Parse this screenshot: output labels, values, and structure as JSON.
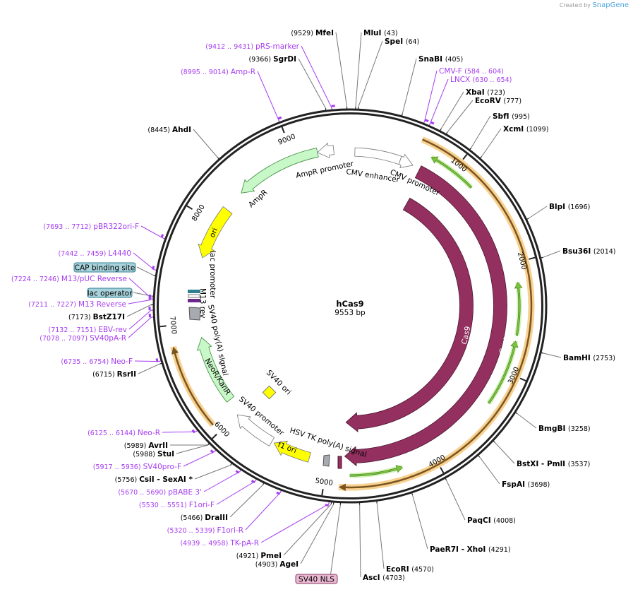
{
  "credit": {
    "prefix": "Created by",
    "brand": "SnapGene"
  },
  "plasmid": {
    "name": "hCas9",
    "length_label": "9553 bp",
    "length": 9553
  },
  "ticks": [
    1000,
    2000,
    3000,
    4000,
    5000,
    6000,
    7000,
    8000,
    9000
  ],
  "enzymes": [
    {
      "name": "MfeI",
      "pos": 9529
    },
    {
      "name": "MluI",
      "pos": 43
    },
    {
      "name": "SpeI",
      "pos": 64
    },
    {
      "name": "SgrDI",
      "pos": 9366
    },
    {
      "name": "SnaBI",
      "pos": 405
    },
    {
      "name": "XbaI",
      "pos": 723
    },
    {
      "name": "EcoRV",
      "pos": 777
    },
    {
      "name": "SbfI",
      "pos": 995
    },
    {
      "name": "XcmI",
      "pos": 1099
    },
    {
      "name": "AhdI",
      "pos": 8445
    },
    {
      "name": "BlpI",
      "pos": 1696
    },
    {
      "name": "Bsu36I",
      "pos": 2014
    },
    {
      "name": "BamHI",
      "pos": 2753
    },
    {
      "name": "BmgBI",
      "pos": 3258
    },
    {
      "name": "BstXI  - PmlI",
      "pos": 3537
    },
    {
      "name": "FspAI",
      "pos": 3698
    },
    {
      "name": "PaqCI",
      "pos": 4008
    },
    {
      "name": "PaeR7I  - XhoI",
      "pos": 4291
    },
    {
      "name": "EcoRI",
      "pos": 4570
    },
    {
      "name": "AscI",
      "pos": 4703
    },
    {
      "name": "AgeI",
      "pos": 4903
    },
    {
      "name": "PmeI",
      "pos": 4921
    },
    {
      "name": "DraIII",
      "pos": 5466
    },
    {
      "name": "CsiI  - SexAI *",
      "pos": 5756
    },
    {
      "name": "StuI",
      "pos": 5988
    },
    {
      "name": "AvrII",
      "pos": 5989
    },
    {
      "name": "RsrII",
      "pos": 6715
    },
    {
      "name": "BstZ17I",
      "pos": 7173
    }
  ],
  "primers": [
    {
      "name": "pRS-marker",
      "range": "9412 .. 9431"
    },
    {
      "name": "Amp-R",
      "range": "8995 .. 9014"
    },
    {
      "name": "CMV-F",
      "range": "584 .. 604"
    },
    {
      "name": "LNCX",
      "range": "630 .. 654"
    },
    {
      "name": "pBR322ori-F",
      "range": "7693 .. 7712"
    },
    {
      "name": "L4440",
      "range": "7442 .. 7459"
    },
    {
      "name": "M13/pUC Reverse",
      "range": "7224 .. 7246"
    },
    {
      "name": "M13 Reverse",
      "range": "7211 .. 7227"
    },
    {
      "name": "EBV-rev",
      "range": "7132 .. 7151"
    },
    {
      "name": "SV40pA-R",
      "range": "7078 .. 7097"
    },
    {
      "name": "Neo-F",
      "range": "6735 .. 6754"
    },
    {
      "name": "Neo-R",
      "range": "6125 .. 6144"
    },
    {
      "name": "SV40pro-F",
      "range": "5917 .. 5936"
    },
    {
      "name": "pBABE 3'",
      "range": "5670 .. 5690"
    },
    {
      "name": "F1ori-F",
      "range": "5530 .. 5551"
    },
    {
      "name": "F1ori-R",
      "range": "5320 .. 5339"
    },
    {
      "name": "TK-pA-R",
      "range": "4939 .. 4958"
    }
  ],
  "boxed_features": [
    {
      "name": "CAP binding site",
      "pos": 7400,
      "fill": "#a9d3dc",
      "stroke": "#2e7f90"
    },
    {
      "name": "lac operator",
      "pos": 7240,
      "fill": "#a9d3dc",
      "stroke": "#2e7f90"
    },
    {
      "name": "SV40 NLS",
      "pos": 4850,
      "fill": "#eab8d2",
      "stroke": "#8c3a66"
    }
  ],
  "features": [
    {
      "name": "CMV enhancer",
      "start": 48,
      "end": 505,
      "dir": 0,
      "color": "#ffffff"
    },
    {
      "name": "CMV promoter",
      "start": 505,
      "end": 640,
      "dir": 1,
      "color": "#ffffff"
    },
    {
      "name": "Cas9",
      "start": 716,
      "end": 4830,
      "dir": 1,
      "color": "#93305f"
    },
    {
      "name": "Cas9",
      "start": 770,
      "end": 4830,
      "dir": 1,
      "color": "#93305f"
    },
    {
      "name": "AmpR",
      "start": 8386,
      "end": 9235,
      "dir": -1,
      "color": "#c8f7c8"
    },
    {
      "name": "AmpR promoter",
      "start": 9235,
      "end": 9394,
      "dir": -1,
      "color": "#ffffff"
    },
    {
      "name": "ori",
      "start": 7643,
      "end": 8174,
      "dir": -1,
      "color": "#ffff00"
    },
    {
      "name": "NeoR/KanR",
      "start": 6157,
      "end": 6847,
      "dir": 1,
      "color": "#c8f7c8"
    },
    {
      "name": "SV40 promoter",
      "start": 5572,
      "end": 5998,
      "dir": 1,
      "color": "#ffffff"
    },
    {
      "name": "f1 ori",
      "start": 5175,
      "end": 5546,
      "dir": 1,
      "color": "#ffff00"
    }
  ],
  "feature_labels": {
    "ampr_promoter": "AmpR promoter",
    "cmv_enhancer": "CMV enhancer",
    "cmv_promoter": "CMV promoter",
    "ampr": "AmpR",
    "ori": "ori",
    "lac_promoter": "lac promoter",
    "m13_rev": "M13 rev",
    "sv40_polya": "SV40 poly(A) signal",
    "neor": "NeoR/KanR",
    "sv40_ori": "SV40 ori",
    "sv40_promoter": "SV40 promoter",
    "hsv_tk": "HSV TK poly(A) signal",
    "f1_ori": "f1 ori",
    "cas9_outer": "Cas9",
    "cas9_inner": "Cas9"
  },
  "colors": {
    "primer": "#a63cf0",
    "orange": "#f7c97c",
    "green": "#7cc43c",
    "backbone": "#222222"
  }
}
